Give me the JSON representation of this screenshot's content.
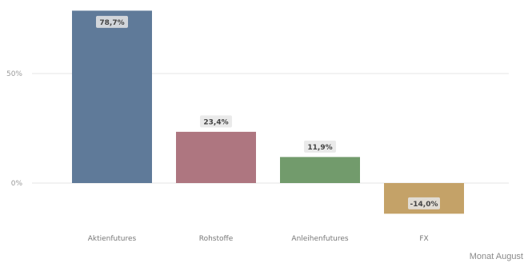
{
  "chart_data": {
    "type": "bar",
    "categories": [
      "Aktienfutures",
      "Rohstoffe",
      "Anleihenfutures",
      "FX"
    ],
    "values": [
      78.7,
      23.4,
      11.9,
      -14.0
    ],
    "value_labels": [
      "78,7%",
      "23,4%",
      "11,9%",
      "-14,0%"
    ],
    "colors": [
      "#5f7a99",
      "#ae7680",
      "#729b6c",
      "#c4a268"
    ],
    "yticks": [
      0,
      50
    ],
    "ytick_labels": [
      "0%",
      "50%"
    ],
    "ylim": [
      -22,
      80
    ],
    "grid": true,
    "legend": "none"
  },
  "footer": {
    "note": "Monat August"
  }
}
